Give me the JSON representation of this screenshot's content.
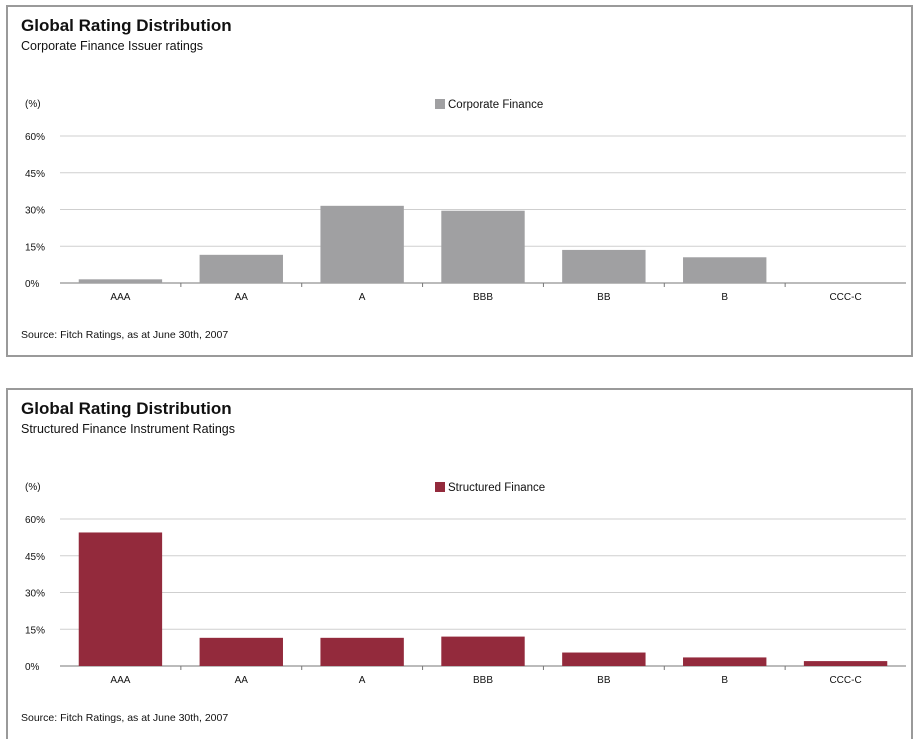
{
  "chart_data": [
    {
      "type": "bar",
      "title": "Global Rating Distribution",
      "subtitle": "Corporate Finance Issuer ratings",
      "unit_label": "(%)",
      "categories": [
        "AAA",
        "AA",
        "A",
        "BBB",
        "BB",
        "B",
        "CCC-C"
      ],
      "series": [
        {
          "name": "Corporate Finance",
          "color": "#a0a0a2",
          "values": [
            1.5,
            11.5,
            31.5,
            29.5,
            13.5,
            10.5,
            0
          ]
        }
      ],
      "yticks": [
        "0%",
        "15%",
        "30%",
        "45%",
        "60%"
      ],
      "ylim": [
        0,
        60
      ],
      "grid": true,
      "legend": "top-center",
      "source": "Source: Fitch Ratings, as at June 30th, 2007"
    },
    {
      "type": "bar",
      "title": "Global Rating Distribution",
      "subtitle": "Structured Finance Instrument Ratings",
      "unit_label": "(%)",
      "categories": [
        "AAA",
        "AA",
        "A",
        "BBB",
        "BB",
        "B",
        "CCC-C"
      ],
      "series": [
        {
          "name": "Structured Finance",
          "color": "#932a3c",
          "values": [
            54.5,
            11.5,
            11.5,
            12,
            5.5,
            3.5,
            2
          ]
        }
      ],
      "yticks": [
        "0%",
        "15%",
        "30%",
        "45%",
        "60%"
      ],
      "ylim": [
        0,
        60
      ],
      "grid": true,
      "legend": "top-center",
      "source": "Source: Fitch Ratings, as at June 30th, 2007"
    }
  ]
}
